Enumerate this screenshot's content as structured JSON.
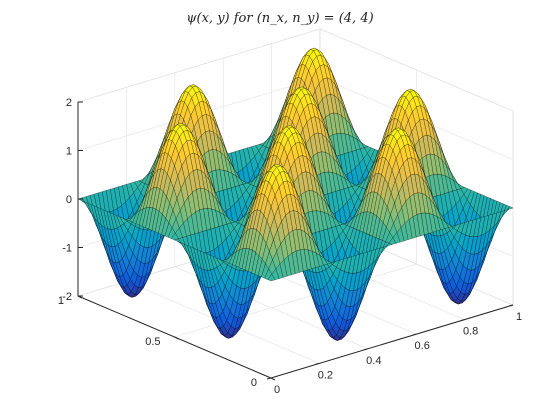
{
  "chart_data": {
    "type": "surface",
    "title": "ψ(x, y) for (n_x, n_y) = (4, 4)",
    "function": "psi(x,y) = 2 * sin(n_x*pi*x) * sin(n_y*pi*y)",
    "n_x": 4,
    "n_y": 4,
    "amplitude": 2,
    "x_range": [
      0,
      1
    ],
    "y_range": [
      0,
      1
    ],
    "z_range": [
      -2,
      2
    ],
    "x_ticks": [
      0,
      0.2,
      0.4,
      0.6,
      0.8,
      1
    ],
    "y_ticks": [
      0,
      0.5,
      1
    ],
    "z_ticks": [
      -2,
      -1,
      0,
      1,
      2
    ],
    "x_tick_labels": [
      "0",
      "0.2",
      "0.4",
      "0.6",
      "0.8",
      "1"
    ],
    "y_tick_labels": [
      "0",
      "0.5",
      "1"
    ],
    "z_tick_labels": [
      "-2",
      "-1",
      "0",
      "1",
      "2"
    ],
    "xlabel": "",
    "ylabel": "",
    "zlabel": "",
    "grid": true,
    "colormap": "parula",
    "colormap_stops": [
      "#352a87",
      "#0f5cdd",
      "#1481d6",
      "#06a4ca",
      "#2eb7a4",
      "#87bf77",
      "#d1bb59",
      "#fec832",
      "#f9fb0e"
    ],
    "edge_color": "#000000"
  }
}
